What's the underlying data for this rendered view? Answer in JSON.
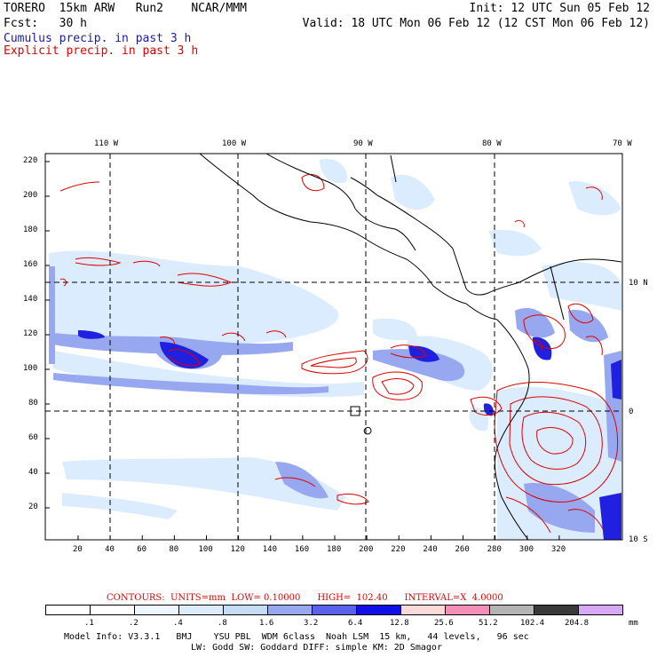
{
  "header": {
    "model": "TORERO  15km ARW   Run2    NCAR/MMM",
    "init": "Init: 12 UTC Sun 05 Feb 12",
    "fcst": "Fcst:   30 h",
    "valid": "Valid: 18 UTC Mon 06 Feb 12 (12 CST Mon 06 Feb 12)"
  },
  "legend": {
    "cumulus": "Cumulus precip. in past 3 h",
    "explicit": "Explicit precip. in past 3 h"
  },
  "axes": {
    "top": [
      "110 W",
      "100 W",
      "90 W",
      "80 W",
      "70 W"
    ],
    "left": [
      "220",
      "200",
      "180",
      "160",
      "140",
      "120",
      "100",
      "80",
      "60",
      "40",
      "20"
    ],
    "bottom": [
      "20",
      "40",
      "60",
      "80",
      "100",
      "120",
      "140",
      "160",
      "180",
      "200",
      "220",
      "240",
      "260",
      "280",
      "300",
      "320"
    ],
    "right": [
      "10 N",
      "0",
      "10 S"
    ]
  },
  "contours": {
    "label": "CONTOURS:  UNITS=mm  LOW= 0.10000      HIGH=  102.40      INTERVAL=X  4.0000"
  },
  "colorbar": {
    "unit": "mm",
    "labels": [
      ".1",
      ".2",
      ".4",
      ".8",
      "1.6",
      "3.2",
      "6.4",
      "12.8",
      "25.6",
      "51.2",
      "102.4",
      "204.8"
    ],
    "colors": [
      "#ffffff",
      "#ffffff",
      "#eef6ff",
      "#dcecff",
      "#c4dcf6",
      "#98a8f0",
      "#5a62ec",
      "#1010e6",
      "#fcd8d8",
      "#f490b8",
      "#b4b4b4",
      "#3a3a3a",
      "#d8a8f8"
    ]
  },
  "footer": {
    "line1": "Model Info: V3.3.1   BMJ    YSU PBL  WDM 6class  Noah LSM  15 km,   44 levels,   96 sec",
    "line2": "LW: Godd SW: Goddard DIFF: simple KM: 2D Smagor"
  }
}
